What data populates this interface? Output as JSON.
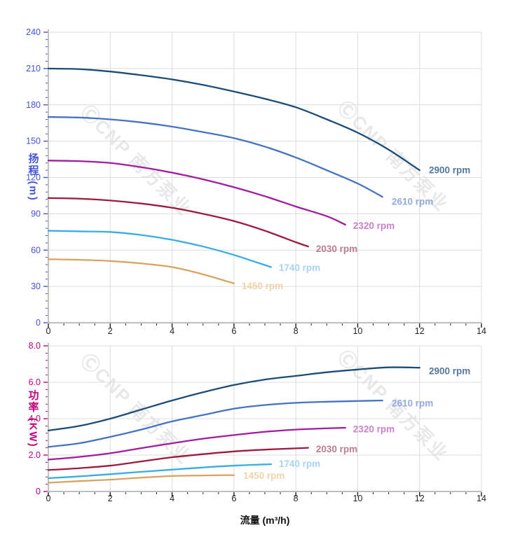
{
  "page": {
    "background": "#ffffff"
  },
  "watermark": {
    "text": "ⒸCNP 南方泵业"
  },
  "x_axis": {
    "label": "流量 (m³/h)",
    "min": 0,
    "max": 14,
    "major": 2,
    "minor": 0.5,
    "tick_labels": [
      "0",
      "2",
      "4",
      "6",
      "8",
      "10",
      "12",
      "14"
    ],
    "tick_color": "#222222"
  },
  "chart_data": [
    {
      "type": "line",
      "name": "head",
      "ylabel": "扬程 (m)",
      "xlabel": "流量 (m³/h)",
      "axis_color": "#4353d8",
      "ylim": [
        0,
        240
      ],
      "y_major": 30,
      "y_minor": 6,
      "y_tick_labels": [
        "0",
        "30",
        "60",
        "90",
        "120",
        "150",
        "180",
        "210",
        "240"
      ],
      "grid": true,
      "legend_position": "end-of-line",
      "series": [
        {
          "name": "2900 rpm",
          "color": "#1c4d77",
          "label_color": "#54789e",
          "label_at": [
            12.3,
            126
          ],
          "points": [
            [
              0,
              210
            ],
            [
              1,
              209.5
            ],
            [
              2,
              207.5
            ],
            [
              3,
              204.5
            ],
            [
              4,
              201
            ],
            [
              5,
              196.5
            ],
            [
              6,
              191
            ],
            [
              7,
              185
            ],
            [
              8,
              178
            ],
            [
              9,
              168
            ],
            [
              10,
              157
            ],
            [
              11,
              143
            ],
            [
              12,
              126
            ]
          ]
        },
        {
          "name": "2610 rpm",
          "color": "#4472c4",
          "label_color": "#92abde",
          "label_at": [
            11.1,
            100
          ],
          "points": [
            [
              0,
              170
            ],
            [
              1,
              169.5
            ],
            [
              2,
              168
            ],
            [
              3,
              165.5
            ],
            [
              4,
              162
            ],
            [
              5,
              157.5
            ],
            [
              6,
              152.5
            ],
            [
              7,
              145.5
            ],
            [
              8,
              136.5
            ],
            [
              9,
              126
            ],
            [
              10,
              115
            ],
            [
              10.8,
              104
            ]
          ]
        },
        {
          "name": "2320 rpm",
          "color": "#a11c9e",
          "label_color": "#c883cb",
          "label_at": [
            9.85,
            80
          ],
          "points": [
            [
              0,
              134
            ],
            [
              1,
              133.5
            ],
            [
              2,
              132
            ],
            [
              3,
              128.5
            ],
            [
              4,
              124
            ],
            [
              5,
              118.5
            ],
            [
              6,
              112
            ],
            [
              7,
              104.5
            ],
            [
              8,
              96
            ],
            [
              9,
              88
            ],
            [
              9.6,
              81
            ]
          ]
        },
        {
          "name": "2030 rpm",
          "color": "#9c1b3f",
          "label_color": "#ba7e8d",
          "label_at": [
            8.65,
            61
          ],
          "points": [
            [
              0,
              103
            ],
            [
              1,
              102.5
            ],
            [
              2,
              101
            ],
            [
              3,
              98.5
            ],
            [
              4,
              95
            ],
            [
              5,
              90
            ],
            [
              6,
              84
            ],
            [
              7,
              76
            ],
            [
              8,
              66.5
            ],
            [
              8.4,
              63
            ]
          ]
        },
        {
          "name": "1740 rpm",
          "color": "#39ace4",
          "label_color": "#a6d4f2",
          "label_at": [
            7.45,
            45.5
          ],
          "points": [
            [
              0,
              76
            ],
            [
              1,
              75.5
            ],
            [
              2,
              75
            ],
            [
              3,
              72.5
            ],
            [
              4,
              68.5
            ],
            [
              5,
              63
            ],
            [
              6,
              56
            ],
            [
              6.6,
              51
            ],
            [
              7.2,
              46
            ]
          ]
        },
        {
          "name": "1450 rpm",
          "color": "#d9a35f",
          "label_color": "#efd3a9",
          "label_at": [
            6.25,
            30.5
          ],
          "points": [
            [
              0,
              52.5
            ],
            [
              1,
              52
            ],
            [
              2,
              51
            ],
            [
              3,
              49
            ],
            [
              4,
              46
            ],
            [
              5,
              40
            ],
            [
              6,
              32.5
            ]
          ]
        }
      ]
    },
    {
      "type": "line",
      "name": "power",
      "ylabel": "功率 (KW)",
      "xlabel": "流量 (m³/h)",
      "axis_color": "#c4007e",
      "ylim": [
        0,
        8
      ],
      "y_major": 2,
      "y_minor": 0.4,
      "y_tick_labels": [
        "0",
        "2.0",
        "4.0",
        "6.0",
        "8.0"
      ],
      "grid": true,
      "legend_position": "end-of-line",
      "series": [
        {
          "name": "2900 rpm",
          "color": "#1c4d77",
          "label_color": "#54789e",
          "label_at": [
            12.3,
            6.62
          ],
          "points": [
            [
              0,
              3.35
            ],
            [
              1,
              3.6
            ],
            [
              2,
              4.0
            ],
            [
              3,
              4.5
            ],
            [
              4,
              5.0
            ],
            [
              5,
              5.45
            ],
            [
              6,
              5.85
            ],
            [
              7,
              6.15
            ],
            [
              8,
              6.35
            ],
            [
              9,
              6.55
            ],
            [
              10,
              6.7
            ],
            [
              11,
              6.82
            ],
            [
              12,
              6.8
            ]
          ]
        },
        {
          "name": "2610 rpm",
          "color": "#4472c4",
          "label_color": "#92abde",
          "label_at": [
            11.1,
            4.85
          ],
          "points": [
            [
              0,
              2.45
            ],
            [
              1,
              2.65
            ],
            [
              2,
              3.0
            ],
            [
              3,
              3.4
            ],
            [
              4,
              3.85
            ],
            [
              5,
              4.2
            ],
            [
              6,
              4.55
            ],
            [
              7,
              4.75
            ],
            [
              8,
              4.87
            ],
            [
              9,
              4.93
            ],
            [
              10,
              4.97
            ],
            [
              10.8,
              5.0
            ]
          ]
        },
        {
          "name": "2320 rpm",
          "color": "#a11c9e",
          "label_color": "#c883cb",
          "label_at": [
            9.85,
            3.42
          ],
          "points": [
            [
              0,
              1.75
            ],
            [
              1,
              1.9
            ],
            [
              2,
              2.1
            ],
            [
              3,
              2.38
            ],
            [
              4,
              2.65
            ],
            [
              5,
              2.9
            ],
            [
              6,
              3.1
            ],
            [
              7,
              3.28
            ],
            [
              8,
              3.4
            ],
            [
              9,
              3.47
            ],
            [
              9.6,
              3.5
            ]
          ]
        },
        {
          "name": "2030 rpm",
          "color": "#9c1b3f",
          "label_color": "#ba7e8d",
          "label_at": [
            8.65,
            2.33
          ],
          "points": [
            [
              0,
              1.18
            ],
            [
              1,
              1.28
            ],
            [
              2,
              1.42
            ],
            [
              3,
              1.65
            ],
            [
              4,
              1.88
            ],
            [
              5,
              2.05
            ],
            [
              6,
              2.2
            ],
            [
              7,
              2.3
            ],
            [
              8,
              2.37
            ],
            [
              8.4,
              2.4
            ]
          ]
        },
        {
          "name": "1740 rpm",
          "color": "#39ace4",
          "label_color": "#a6d4f2",
          "label_at": [
            7.45,
            1.52
          ],
          "points": [
            [
              0,
              0.73
            ],
            [
              1,
              0.83
            ],
            [
              2,
              0.95
            ],
            [
              3,
              1.08
            ],
            [
              4,
              1.2
            ],
            [
              5,
              1.32
            ],
            [
              6,
              1.42
            ],
            [
              7.2,
              1.5
            ]
          ]
        },
        {
          "name": "1450 rpm",
          "color": "#d9a35f",
          "label_color": "#efd3a9",
          "label_at": [
            6.3,
            0.87
          ],
          "points": [
            [
              0,
              0.48
            ],
            [
              1,
              0.57
            ],
            [
              2,
              0.65
            ],
            [
              3,
              0.76
            ],
            [
              4,
              0.85
            ],
            [
              5,
              0.88
            ],
            [
              6,
              0.9
            ]
          ]
        }
      ]
    }
  ]
}
